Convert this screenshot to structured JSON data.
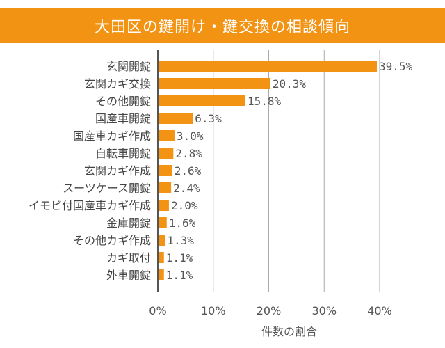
{
  "chart_data": {
    "type": "bar",
    "orientation": "horizontal",
    "title": "大田区の鍵開け・鍵交換の相談傾向",
    "categories": [
      "玄関開錠",
      "玄関カギ交換",
      "その他開錠",
      "国産車開錠",
      "国産車カギ作成",
      "自転車開錠",
      "玄関カギ作成",
      "スーツケース開錠",
      "イモビ付国産車カギ作成",
      "金庫開錠",
      "その他カギ作成",
      "カギ取付",
      "外車開錠"
    ],
    "values": [
      39.5,
      20.3,
      15.8,
      6.3,
      3.0,
      2.8,
      2.6,
      2.4,
      2.0,
      1.6,
      1.3,
      1.1,
      1.1
    ],
    "value_labels": [
      "39.5%",
      "20.3%",
      "15.8%",
      "6.3%",
      "3.0%",
      "2.8%",
      "2.6%",
      "2.4%",
      "2.0%",
      "1.6%",
      "1.3%",
      "1.1%",
      "1.1%"
    ],
    "xticks": [
      "0%",
      "10%",
      "20%",
      "30%",
      "40%"
    ],
    "xlim": [
      0,
      40
    ],
    "xlabel": "件数の割合",
    "ylabel": "",
    "grid": true,
    "bar_color": "#f39313"
  }
}
